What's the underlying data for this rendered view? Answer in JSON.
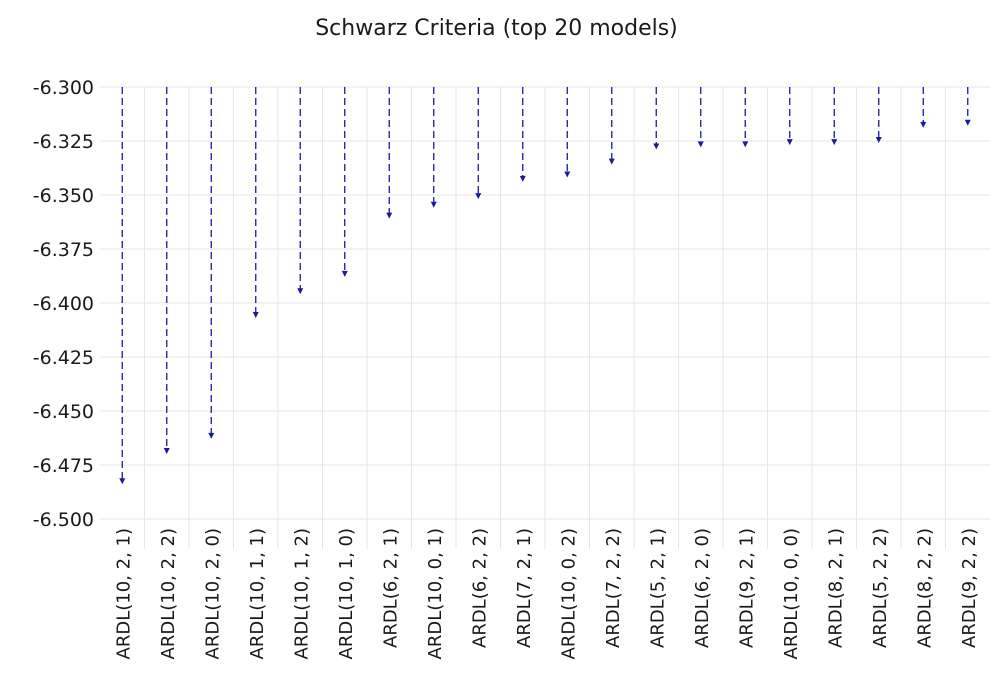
{
  "chart_data": {
    "type": "bar",
    "title": "Schwarz Criteria (top 20 models)",
    "xlabel": "",
    "ylabel": "",
    "ylim": [
      -6.5,
      -6.3
    ],
    "yticks": [
      "-6.300",
      "-6.325",
      "-6.350",
      "-6.375",
      "-6.400",
      "-6.425",
      "-6.450",
      "-6.475",
      "-6.500"
    ],
    "grid": true,
    "categories": [
      "ARDL(10, 2, 1)",
      "ARDL(10, 2, 2)",
      "ARDL(10, 2, 0)",
      "ARDL(10, 1, 1)",
      "ARDL(10, 1, 2)",
      "ARDL(10, 1, 0)",
      "ARDL(6, 2, 1)",
      "ARDL(10, 0, 1)",
      "ARDL(6, 2, 2)",
      "ARDL(7, 2, 1)",
      "ARDL(10, 0, 2)",
      "ARDL(7, 2, 2)",
      "ARDL(5, 2, 1)",
      "ARDL(6, 2, 0)",
      "ARDL(9, 2, 1)",
      "ARDL(10, 0, 0)",
      "ARDL(8, 2, 1)",
      "ARDL(5, 2, 2)",
      "ARDL(8, 2, 2)",
      "ARDL(9, 2, 2)"
    ],
    "values": [
      -6.483,
      -6.469,
      -6.462,
      -6.406,
      -6.395,
      -6.387,
      -6.36,
      -6.355,
      -6.351,
      -6.343,
      -6.341,
      -6.335,
      -6.328,
      -6.327,
      -6.327,
      -6.326,
      -6.326,
      -6.325,
      -6.318,
      -6.317
    ],
    "colors": {
      "marker": "#1a1a9e",
      "grid": "#e6e6e6",
      "text": "#1a1a1a"
    }
  }
}
